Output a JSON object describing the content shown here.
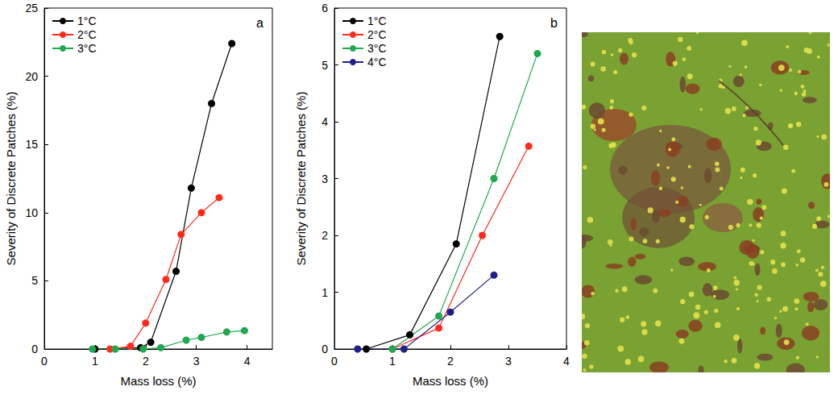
{
  "chart_data": [
    {
      "type": "line",
      "annotation": "a",
      "x_label": "Mass loss (%)",
      "y_label": "Severity of Discrete Patches (%)",
      "xlim": [
        0,
        4.5
      ],
      "xticks": [
        0,
        1,
        2,
        3,
        4
      ],
      "ylim": [
        0,
        25
      ],
      "yticks": [
        0,
        5,
        10,
        15,
        20,
        25
      ],
      "legend": "upper left",
      "marker": "circle",
      "grid": false,
      "series": [
        {
          "name": "1°C",
          "color": "#000000",
          "x": [
            1.0,
            1.9,
            2.1,
            2.6,
            2.9,
            3.3,
            3.7
          ],
          "values": [
            0,
            0.1,
            0.5,
            5.7,
            11.8,
            18.0,
            22.4
          ]
        },
        {
          "name": "2°C",
          "color": "#ff2a1a",
          "x": [
            1.3,
            1.7,
            2.0,
            2.4,
            2.7,
            3.1,
            3.45
          ],
          "values": [
            0,
            0.2,
            1.9,
            5.1,
            8.4,
            10.0,
            11.1
          ]
        },
        {
          "name": "3°C",
          "color": "#1fa84f",
          "x": [
            0.95,
            1.4,
            1.95,
            2.3,
            2.8,
            3.1,
            3.6,
            3.95
          ],
          "values": [
            0,
            0,
            0,
            0.1,
            0.65,
            0.85,
            1.25,
            1.35
          ]
        }
      ]
    },
    {
      "type": "line",
      "annotation": "b",
      "x_label": "Mass loss (%)",
      "y_label": "Severity of Discrete Patches (%)",
      "xlim": [
        0,
        4
      ],
      "xticks": [
        0,
        1,
        2,
        3,
        4
      ],
      "ylim": [
        0,
        6
      ],
      "yticks": [
        0,
        1,
        2,
        3,
        4,
        5,
        6
      ],
      "legend": "upper left",
      "marker": "circle",
      "grid": false,
      "series": [
        {
          "name": "1°C",
          "color": "#000000",
          "x": [
            0.55,
            1.3,
            2.1,
            2.85
          ],
          "values": [
            0,
            0.25,
            1.85,
            5.5
          ]
        },
        {
          "name": "2°C",
          "color": "#ff2a1a",
          "x": [
            1.0,
            1.8,
            2.55,
            3.35
          ],
          "values": [
            0,
            0.37,
            2.0,
            3.57
          ]
        },
        {
          "name": "3°C",
          "color": "#1fa84f",
          "x": [
            1.0,
            1.8,
            2.75,
            3.5
          ],
          "values": [
            0,
            0.58,
            3.0,
            5.2
          ]
        },
        {
          "name": "4°C",
          "color": "#1f1f8c",
          "x": [
            0.4,
            1.2,
            2.0,
            2.75
          ],
          "values": [
            0,
            0,
            0.65,
            1.3
          ]
        }
      ]
    }
  ]
}
